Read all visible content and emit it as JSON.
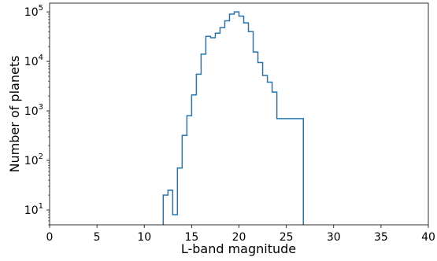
{
  "chart_data": {
    "type": "histogram",
    "xlabel": "L-band magnitude",
    "ylabel": "Number of planets",
    "xlim": [
      0,
      40
    ],
    "yscale": "log",
    "ylim": [
      5,
      150000
    ],
    "x_ticks": [
      0,
      5,
      10,
      15,
      20,
      25,
      30,
      35,
      40
    ],
    "y_ticks": [
      {
        "value": 10,
        "base": "10",
        "exp": "1"
      },
      {
        "value": 100,
        "base": "10",
        "exp": "2"
      },
      {
        "value": 1000,
        "base": "10",
        "exp": "3"
      },
      {
        "value": 10000,
        "base": "10",
        "exp": "4"
      },
      {
        "value": 100000,
        "base": "10",
        "exp": "5"
      }
    ],
    "color": "#1f77b4",
    "bin_edges": [
      12.0,
      12.5,
      13.0,
      13.5,
      14.0,
      14.5,
      15.0,
      15.5,
      16.0,
      16.5,
      17.0,
      17.5,
      18.0,
      18.5,
      19.0,
      19.5,
      20.0,
      20.5,
      21.0,
      21.5,
      22.0,
      22.5,
      23.0,
      23.5,
      24.0,
      24.5,
      25.0,
      25.5,
      26.0,
      26.5,
      26.8
    ],
    "counts": [
      20,
      25,
      8,
      70,
      320,
      800,
      2100,
      5500,
      14000,
      32000,
      30000,
      37000,
      48000,
      66000,
      90000,
      100000,
      82000,
      60000,
      40000,
      15500,
      9500,
      5200,
      3800,
      2400,
      700,
      700,
      700,
      700,
      700,
      700
    ]
  }
}
